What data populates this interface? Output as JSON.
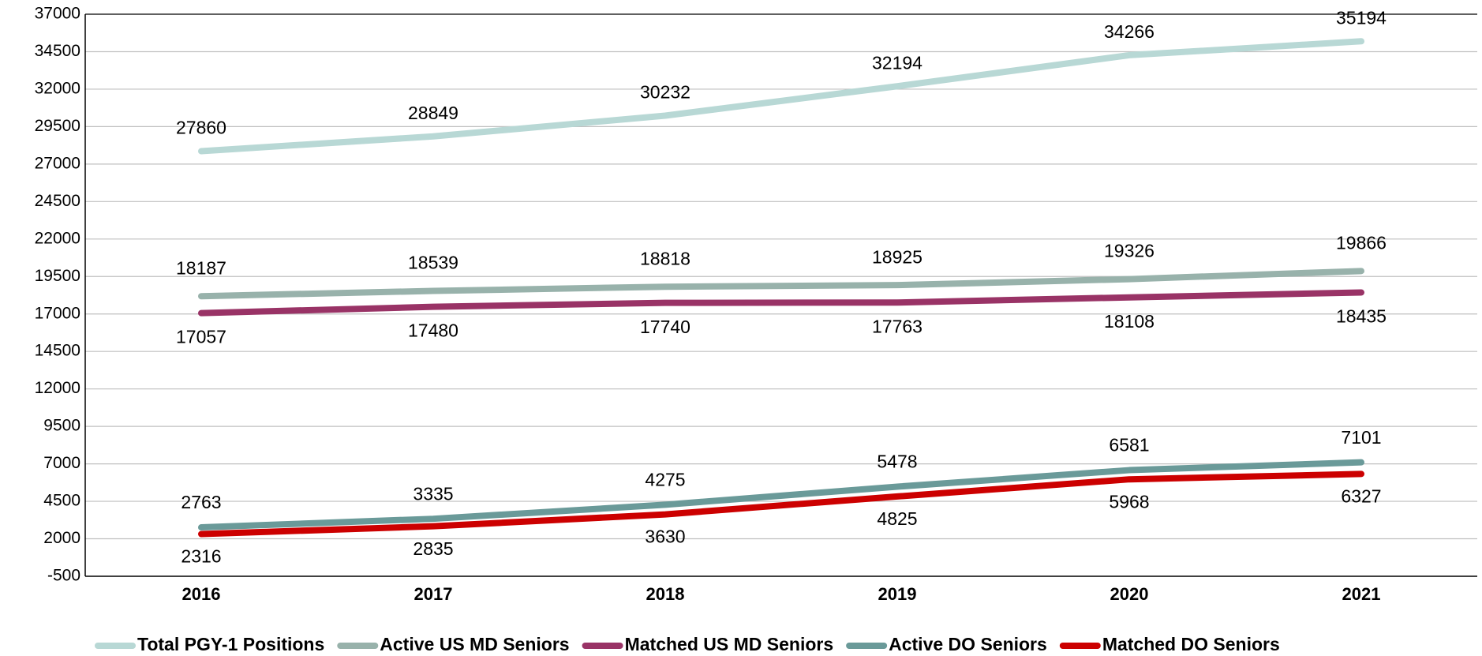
{
  "chart_data": {
    "type": "line",
    "categories": [
      "2016",
      "2017",
      "2018",
      "2019",
      "2020",
      "2021"
    ],
    "series": [
      {
        "name": "Total PGY-1 Positions",
        "color": "#b8d8d5",
        "values": [
          27860,
          28849,
          30232,
          32194,
          34266,
          35194
        ]
      },
      {
        "name": "Active US MD Seniors",
        "color": "#98b2ab",
        "values": [
          18187,
          18539,
          18818,
          18925,
          19326,
          19866
        ]
      },
      {
        "name": "Matched US MD Seniors",
        "color": "#993366",
        "values": [
          17057,
          17480,
          17740,
          17763,
          18108,
          18435
        ]
      },
      {
        "name": "Active DO Seniors",
        "color": "#6a9a99",
        "values": [
          2763,
          3335,
          4275,
          5478,
          6581,
          7101
        ]
      },
      {
        "name": "Matched DO Seniors",
        "color": "#cc0000",
        "values": [
          2316,
          2835,
          3630,
          4825,
          5968,
          6327
        ]
      }
    ],
    "ylim": [
      -500,
      37000
    ],
    "yticks": [
      -500,
      2000,
      4500,
      7000,
      9500,
      12000,
      14500,
      17000,
      19500,
      22000,
      24500,
      27000,
      29500,
      32000,
      34500,
      37000
    ],
    "grid": true,
    "legend": "bottom"
  }
}
